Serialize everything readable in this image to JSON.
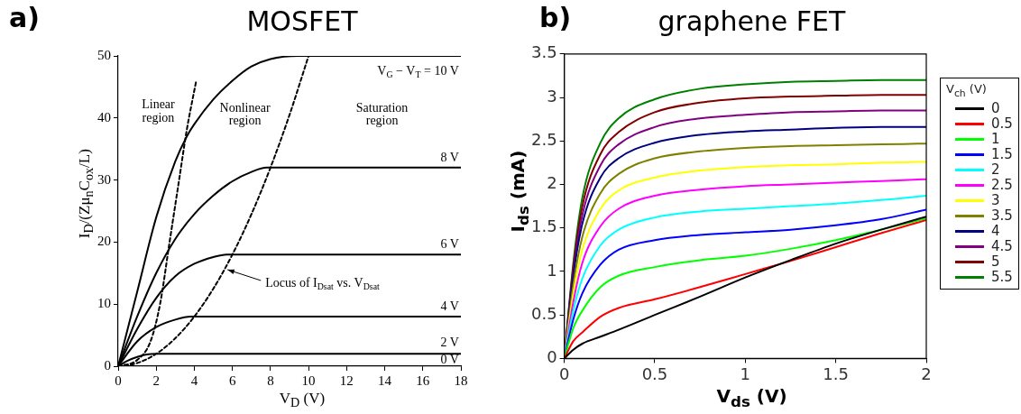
{
  "chart_data": [
    {
      "type": "line",
      "title": "MOSFET",
      "xlabel": "V$_{D}$ (V)",
      "ylabel": "I$_{D}$/(Zμ$_{n}$C$_{ox}$/L)",
      "xlim": [
        0,
        18
      ],
      "xticks": [
        0,
        2,
        4,
        6,
        8,
        10,
        12,
        14,
        16,
        18
      ],
      "ylim": [
        0,
        50
      ],
      "yticks": [
        0,
        10,
        20,
        30,
        40,
        50
      ],
      "grid": false,
      "legend": false,
      "marker": "none",
      "annotations": [
        "a)",
        "Linear\nregion",
        "Nonlinear\nregion",
        "Saturation\nregion",
        "V$_{G}$ − V$_{T}$ = 10 V",
        "8 V",
        "6 V",
        "4 V",
        "2 V",
        "0 V",
        {
          "text": "Locus of I$_{Dsat}$ vs. V$_{Dsat}$",
          "x": 5.6,
          "y": 15.7
        }
      ],
      "series": [
        {
          "color": "#000000",
          "x": [
            0,
            1,
            2,
            3,
            3.6,
            4,
            5,
            6,
            7,
            8,
            9.5,
            18
          ],
          "values": [
            0,
            12,
            24,
            33,
            37,
            39,
            43,
            46,
            48.3,
            49.5,
            50,
            50
          ]
        },
        {
          "color": "#000000",
          "x": [
            0,
            1,
            2,
            3,
            4,
            5,
            6,
            7,
            7.8,
            18
          ],
          "values": [
            0,
            8,
            15,
            20.5,
            24.5,
            27.5,
            29.8,
            31.3,
            32,
            32
          ]
        },
        {
          "color": "#000000",
          "x": [
            0,
            1,
            2,
            3,
            4,
            5,
            5.7,
            18
          ],
          "values": [
            0,
            6,
            11,
            14.5,
            16.5,
            17.6,
            18,
            18
          ]
        },
        {
          "color": "#000000",
          "x": [
            0,
            1,
            2,
            3,
            3.8,
            18
          ],
          "values": [
            0,
            4,
            6.3,
            7.5,
            8,
            8
          ]
        },
        {
          "color": "#000000",
          "x": [
            0,
            0.5,
            1,
            1.5,
            2,
            18
          ],
          "values": [
            0,
            0.9,
            1.5,
            1.9,
            2,
            2
          ]
        },
        {
          "color": "#000000",
          "x": [
            0,
            18
          ],
          "values": [
            0,
            0
          ]
        },
        {
          "color": "#000000",
          "line_style": "dashed",
          "x": [
            0,
            1,
            2,
            3,
            4,
            5,
            6,
            7,
            8,
            9,
            10
          ],
          "values": [
            0,
            0.5,
            2,
            4.5,
            8,
            12.5,
            18,
            24.5,
            32,
            40.5,
            50
          ]
        },
        {
          "color": "#000000",
          "line_style": "dashed",
          "x": [
            0,
            1,
            1.7,
            2.2,
            2.7,
            3.2,
            3.6,
            4.1
          ],
          "values": [
            0,
            1,
            4,
            10,
            20,
            30,
            38,
            46
          ]
        }
      ]
    },
    {
      "type": "line",
      "title": "graphene FET",
      "xlabel": "V$_{ds}$ (V)",
      "ylabel": "I$_{ds}$ (mA)",
      "legend_title": "V$_{ch}$ (V)",
      "xlim": [
        0,
        2
      ],
      "xticks": [
        0,
        0.5,
        1,
        1.5,
        2
      ],
      "ylim": [
        0,
        3.5
      ],
      "yticks": [
        0,
        0.5,
        1,
        1.5,
        2,
        2.5,
        3,
        3.5
      ],
      "grid": false,
      "legend": "right",
      "marker": "none",
      "annotations": [
        "b)"
      ],
      "x": [
        0,
        0.05,
        0.1,
        0.2,
        0.3,
        0.5,
        0.75,
        1,
        1.25,
        1.5,
        1.75,
        2
      ],
      "series": [
        {
          "name": "0",
          "color": "#000000",
          "values": [
            0,
            0.1,
            0.17,
            0.25,
            0.33,
            0.5,
            0.71,
            0.93,
            1.13,
            1.32,
            1.48,
            1.63
          ]
        },
        {
          "name": "0.5",
          "color": "#ff0000",
          "values": [
            0,
            0.2,
            0.3,
            0.48,
            0.58,
            0.68,
            0.82,
            0.97,
            1.12,
            1.28,
            1.44,
            1.59
          ]
        },
        {
          "name": "1",
          "color": "#00ff00",
          "values": [
            0,
            0.35,
            0.55,
            0.82,
            0.95,
            1.05,
            1.13,
            1.18,
            1.26,
            1.36,
            1.48,
            1.61
          ]
        },
        {
          "name": "1.5",
          "color": "#0000ff",
          "values": [
            0,
            0.45,
            0.75,
            1.08,
            1.25,
            1.36,
            1.42,
            1.45,
            1.48,
            1.53,
            1.6,
            1.71
          ]
        },
        {
          "name": "2",
          "color": "#00ffff",
          "values": [
            0,
            0.55,
            0.92,
            1.3,
            1.48,
            1.62,
            1.69,
            1.72,
            1.75,
            1.78,
            1.82,
            1.87
          ]
        },
        {
          "name": "2.5",
          "color": "#ff00ff",
          "values": [
            0,
            0.65,
            1.1,
            1.52,
            1.72,
            1.87,
            1.94,
            1.98,
            2.0,
            2.02,
            2.04,
            2.06
          ]
        },
        {
          "name": "3",
          "color": "#ffff00",
          "values": [
            0,
            0.75,
            1.25,
            1.72,
            1.93,
            2.08,
            2.16,
            2.2,
            2.22,
            2.23,
            2.25,
            2.26
          ]
        },
        {
          "name": "3.5",
          "color": "#808000",
          "values": [
            0,
            0.85,
            1.4,
            1.9,
            2.12,
            2.3,
            2.38,
            2.42,
            2.44,
            2.45,
            2.46,
            2.47
          ]
        },
        {
          "name": "4",
          "color": "#000080",
          "values": [
            0,
            0.95,
            1.55,
            2.08,
            2.3,
            2.48,
            2.57,
            2.61,
            2.63,
            2.65,
            2.66,
            2.66
          ]
        },
        {
          "name": "4.5",
          "color": "#800080",
          "values": [
            0,
            1.0,
            1.65,
            2.22,
            2.46,
            2.66,
            2.76,
            2.8,
            2.83,
            2.84,
            2.85,
            2.85
          ]
        },
        {
          "name": "5",
          "color": "#800000",
          "values": [
            0,
            1.05,
            1.75,
            2.35,
            2.6,
            2.83,
            2.94,
            2.99,
            3.01,
            3.02,
            3.03,
            3.03
          ]
        },
        {
          "name": "5.5",
          "color": "#008000",
          "values": [
            0,
            1.1,
            1.85,
            2.48,
            2.76,
            2.98,
            3.1,
            3.15,
            3.18,
            3.19,
            3.2,
            3.2
          ]
        }
      ]
    }
  ]
}
